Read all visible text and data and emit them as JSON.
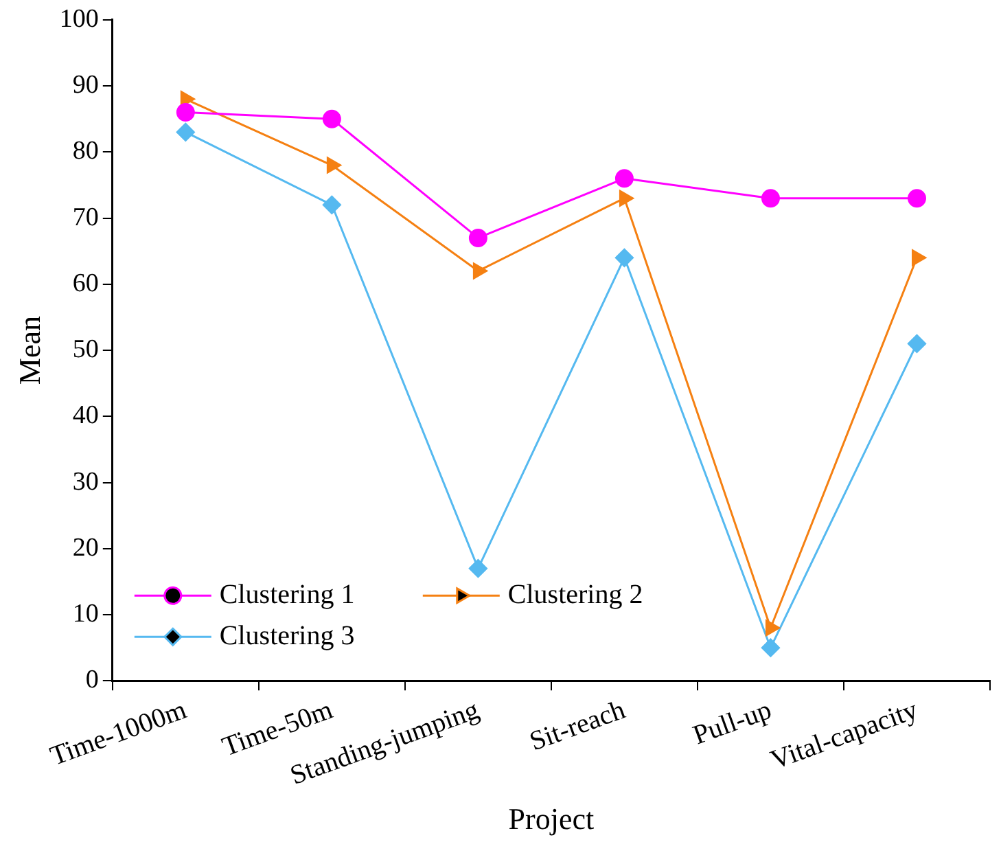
{
  "chart_data": {
    "type": "line",
    "xlabel": "Project",
    "ylabel": "Mean",
    "categories": [
      "Time-1000m",
      "Time-50m",
      "Standing-jumping",
      "Sit-reach",
      "Pull-up",
      "Vital-capacity"
    ],
    "series": [
      {
        "name": "Clustering 1",
        "color": "#ff00ff",
        "marker": "circle",
        "values": [
          86,
          85,
          67,
          76,
          73,
          73
        ]
      },
      {
        "name": "Clustering 2",
        "color": "#f58012",
        "marker": "triangle",
        "values": [
          88,
          78,
          62,
          73,
          8,
          64
        ]
      },
      {
        "name": "Clustering 3",
        "color": "#55b9f0",
        "marker": "diamond",
        "values": [
          83,
          72,
          17,
          64,
          5,
          51
        ]
      }
    ],
    "ylim": [
      0,
      100
    ],
    "yticks": [
      0,
      10,
      20,
      30,
      40,
      50,
      60,
      70,
      80,
      90,
      100
    ],
    "grid": false,
    "legend": "bottom left",
    "line_style": "solid"
  }
}
